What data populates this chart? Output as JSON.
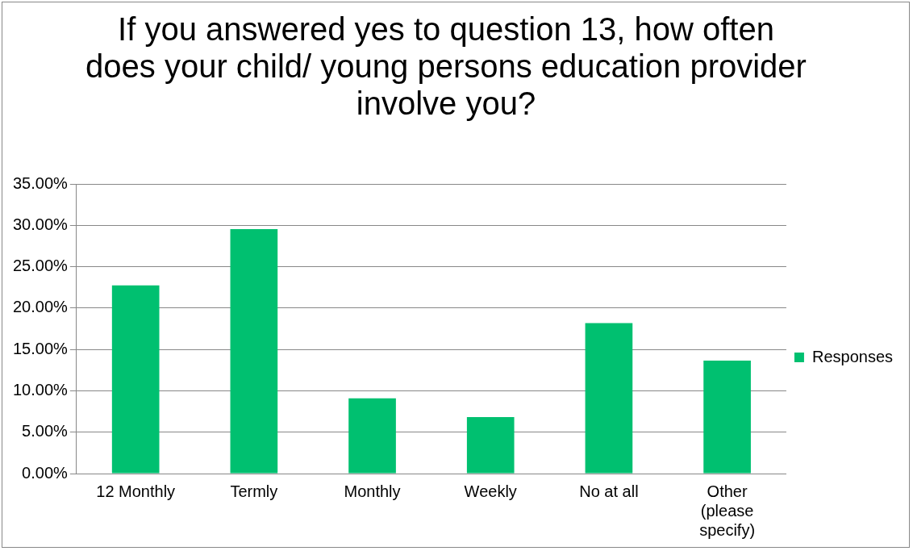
{
  "chart_data": {
    "type": "bar",
    "title": "If you answered yes to question 13, how often does your child/ young persons education provider involve you?",
    "categories": [
      "12 Monthly",
      "Termly",
      "Monthly",
      "Weekly",
      "No at all",
      "Other (please specify)"
    ],
    "series": [
      {
        "name": "Responses",
        "color": "#00c070",
        "values": [
          22.73,
          29.55,
          9.09,
          6.82,
          18.18,
          13.64
        ]
      }
    ],
    "ylim": [
      0,
      35
    ],
    "yticks": [
      {
        "value": 0,
        "label": "0.00%"
      },
      {
        "value": 5,
        "label": "5.00%"
      },
      {
        "value": 10,
        "label": "10.00%"
      },
      {
        "value": 15,
        "label": "15.00%"
      },
      {
        "value": 20,
        "label": "20.00%"
      },
      {
        "value": 25,
        "label": "25.00%"
      },
      {
        "value": 30,
        "label": "30.00%"
      },
      {
        "value": 35,
        "label": "35.00%"
      }
    ],
    "grid": "y",
    "legend": "right"
  }
}
